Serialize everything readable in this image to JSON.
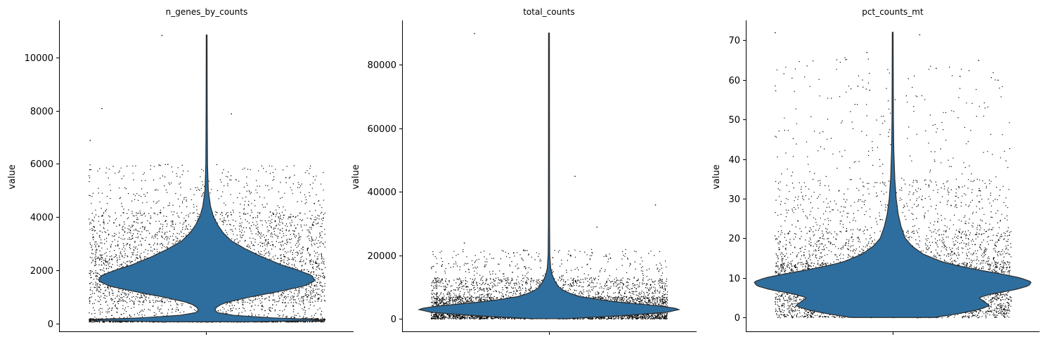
{
  "chart_data": [
    {
      "type": "violin",
      "title": "n_genes_by_counts",
      "ylabel": "value",
      "ylim": [
        -300,
        11400
      ],
      "yticks": [
        0,
        2000,
        4000,
        6000,
        8000,
        10000
      ],
      "ytick_labels": [
        "0",
        "2000",
        "4000",
        "6000",
        "8000",
        "10000"
      ],
      "y_max": 10850,
      "density_profile": [
        [
          60,
          0.3
        ],
        [
          120,
          0.96
        ],
        [
          200,
          0.5
        ],
        [
          300,
          0.2
        ],
        [
          400,
          0.08
        ],
        [
          500,
          0.06
        ],
        [
          600,
          0.07
        ],
        [
          700,
          0.1
        ],
        [
          800,
          0.15
        ],
        [
          1000,
          0.32
        ],
        [
          1200,
          0.52
        ],
        [
          1400,
          0.7
        ],
        [
          1600,
          0.78
        ],
        [
          1800,
          0.76
        ],
        [
          2000,
          0.66
        ],
        [
          2200,
          0.54
        ],
        [
          2500,
          0.4
        ],
        [
          2800,
          0.28
        ],
        [
          3100,
          0.18
        ],
        [
          3400,
          0.12
        ],
        [
          3700,
          0.08
        ],
        [
          4000,
          0.05
        ],
        [
          4400,
          0.028
        ],
        [
          5000,
          0.012
        ],
        [
          6000,
          0.006
        ],
        [
          8000,
          0.004
        ],
        [
          10850,
          0.003
        ]
      ],
      "point_bands": [
        {
          "lo": 60,
          "hi": 200,
          "weight": 0.3
        },
        {
          "lo": 800,
          "hi": 2600,
          "weight": 0.38
        },
        {
          "lo": 2600,
          "hi": 4200,
          "weight": 0.2
        },
        {
          "lo": 200,
          "hi": 800,
          "weight": 0.06
        },
        {
          "lo": 4200,
          "hi": 6000,
          "weight": 0.06
        }
      ],
      "outliers": [
        10850,
        8100,
        7900,
        6900,
        6000,
        5800,
        5500
      ]
    },
    {
      "type": "violin",
      "title": "total_counts",
      "ylabel": "value",
      "ylim": [
        -4000,
        94000
      ],
      "yticks": [
        0,
        20000,
        40000,
        60000,
        80000
      ],
      "ytick_labels": [
        "0",
        "20000",
        "40000",
        "60000",
        "80000"
      ],
      "y_max": 90000,
      "density_profile": [
        [
          0,
          0.12
        ],
        [
          1000,
          0.55
        ],
        [
          2000,
          0.85
        ],
        [
          3000,
          0.95
        ],
        [
          4000,
          0.8
        ],
        [
          5000,
          0.55
        ],
        [
          6000,
          0.36
        ],
        [
          7000,
          0.22
        ],
        [
          8000,
          0.15
        ],
        [
          9000,
          0.1
        ],
        [
          10000,
          0.07
        ],
        [
          12000,
          0.04
        ],
        [
          14000,
          0.022
        ],
        [
          16000,
          0.012
        ],
        [
          20000,
          0.006
        ],
        [
          30000,
          0.004
        ],
        [
          90000,
          0.003
        ]
      ],
      "point_bands": [
        {
          "lo": 0,
          "hi": 1500,
          "weight": 0.28
        },
        {
          "lo": 1500,
          "hi": 7000,
          "weight": 0.5
        },
        {
          "lo": 7000,
          "hi": 13000,
          "weight": 0.17
        },
        {
          "lo": 13000,
          "hi": 22000,
          "weight": 0.05
        }
      ],
      "outliers": [
        90000,
        45000,
        36000,
        29000,
        24000
      ]
    },
    {
      "type": "violin",
      "title": "pct_counts_mt",
      "ylabel": "value",
      "ylim": [
        -3.5,
        75
      ],
      "yticks": [
        0,
        10,
        20,
        30,
        40,
        50,
        60,
        70
      ],
      "ytick_labels": [
        "0",
        "10",
        "20",
        "30",
        "40",
        "50",
        "60",
        "70"
      ],
      "y_max": 72,
      "density_profile": [
        [
          0,
          0.3
        ],
        [
          1,
          0.48
        ],
        [
          2,
          0.62
        ],
        [
          3,
          0.7
        ],
        [
          4,
          0.66
        ],
        [
          5,
          0.62
        ],
        [
          6,
          0.72
        ],
        [
          7,
          0.88
        ],
        [
          8,
          0.98
        ],
        [
          9,
          1.0
        ],
        [
          10,
          0.92
        ],
        [
          11,
          0.78
        ],
        [
          12,
          0.62
        ],
        [
          13,
          0.48
        ],
        [
          14,
          0.36
        ],
        [
          16,
          0.22
        ],
        [
          18,
          0.14
        ],
        [
          20,
          0.09
        ],
        [
          23,
          0.06
        ],
        [
          26,
          0.04
        ],
        [
          30,
          0.025
        ],
        [
          35,
          0.015
        ],
        [
          42,
          0.008
        ],
        [
          50,
          0.005
        ],
        [
          72,
          0.003
        ]
      ],
      "point_bands": [
        {
          "lo": 0,
          "hi": 14,
          "weight": 0.72
        },
        {
          "lo": 14,
          "hi": 22,
          "weight": 0.15
        },
        {
          "lo": 22,
          "hi": 35,
          "weight": 0.09
        },
        {
          "lo": 35,
          "hi": 66,
          "weight": 0.04
        }
      ],
      "outliers": [
        72,
        71.5,
        67,
        65,
        63,
        61,
        60,
        58.5,
        57.5
      ]
    }
  ]
}
